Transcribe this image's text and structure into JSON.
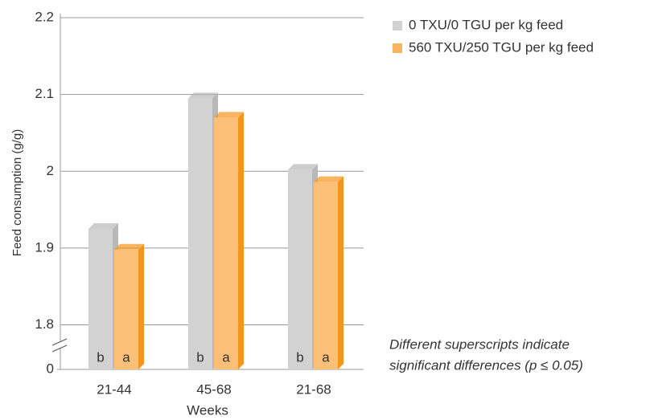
{
  "chart_data": {
    "type": "bar",
    "y_label": "Feed consumption (g/g)",
    "x_label": "Weeks",
    "categories": [
      "21-44",
      "45-68",
      "21-68"
    ],
    "series": [
      {
        "name": "0 TXU/0 TGU per kg feed",
        "color": "#d2d2d2",
        "side_color": "#b8b8b8",
        "values": [
          1.925,
          2.095,
          2.002
        ],
        "letters": [
          "b",
          "b",
          "b"
        ]
      },
      {
        "name": "560 TXU/250 TGU per kg feed",
        "color": "#fcbf78",
        "side_color": "#f7941d",
        "values": [
          1.898,
          2.07,
          1.986
        ],
        "letters": [
          "a",
          "a",
          "a"
        ]
      }
    ],
    "ylim": [
      1.742,
      2.2
    ],
    "yticks": [
      0,
      1.8,
      1.9,
      2.0,
      2.1,
      2.2
    ],
    "axis_break": true,
    "grid": true,
    "annotation": [
      "Different superscripts indicate",
      "significant differences (p ≤ 0.05)"
    ]
  }
}
